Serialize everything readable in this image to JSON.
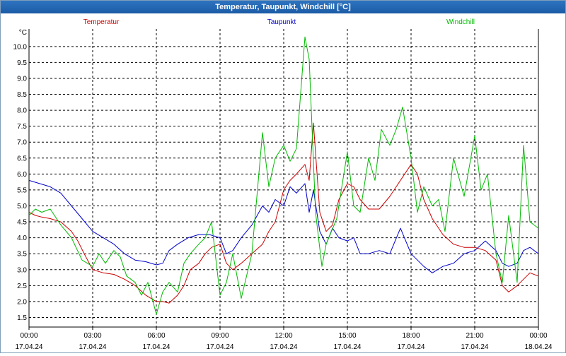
{
  "window": {
    "title": "Temperatur, Taupunkt, Windchill [°C]"
  },
  "colors": {
    "temperature": "#cc0000",
    "dewpoint": "#0000cc",
    "windchill": "#00bb00",
    "grid": "#000000"
  },
  "chart_data": {
    "type": "line",
    "title": "Temperatur, Taupunkt, Windchill [°C]",
    "ylabel": "°C",
    "xlabel": "",
    "ylim": [
      1.2,
      10.55
    ],
    "xlim": [
      0,
      24
    ],
    "grid": true,
    "legend_placement": "top",
    "y_ticks": [
      "1.5",
      "2.0",
      "2.5",
      "3.0",
      "3.5",
      "4.0",
      "4.5",
      "5.0",
      "5.5",
      "6.0",
      "6.5",
      "7.0",
      "7.5",
      "8.0",
      "8.5",
      "9.0",
      "9.5",
      "10.0"
    ],
    "x_ticks": [
      {
        "time": "00:00",
        "date": "17.04.24"
      },
      {
        "time": "03:00",
        "date": "17.04.24"
      },
      {
        "time": "06:00",
        "date": "17.04.24"
      },
      {
        "time": "09:00",
        "date": "17.04.24"
      },
      {
        "time": "12:00",
        "date": "17.04.24"
      },
      {
        "time": "15:00",
        "date": "17.04.24"
      },
      {
        "time": "18:00",
        "date": "17.04.24"
      },
      {
        "time": "21:00",
        "date": "17.04.24"
      },
      {
        "time": "00:00",
        "date": "18.04.24"
      }
    ],
    "x_unit": "hours since 17.04.24 00:00",
    "series": [
      {
        "name": "Temperatur",
        "key": "temperature",
        "x": [
          0,
          0.3,
          0.6,
          1,
          1.5,
          2,
          2.3,
          2.6,
          3,
          3.5,
          4,
          4.5,
          5,
          5.5,
          6,
          6.3,
          6.6,
          7,
          7.3,
          7.6,
          8,
          8.3,
          8.6,
          9,
          9.3,
          9.6,
          10,
          10.5,
          11,
          11.3,
          11.6,
          12,
          12.3,
          12.6,
          13,
          13.2,
          13.4,
          13.7,
          14,
          14.3,
          14.6,
          15,
          15.3,
          15.6,
          16,
          16.5,
          17,
          17.5,
          18,
          18.3,
          18.6,
          19,
          19.5,
          20,
          20.5,
          21,
          21.5,
          22,
          22.3,
          22.6,
          23,
          23.3,
          23.6,
          24
        ],
        "y": [
          4.8,
          4.7,
          4.65,
          4.6,
          4.5,
          4.2,
          3.9,
          3.5,
          3.0,
          2.9,
          2.85,
          2.7,
          2.5,
          2.2,
          2.0,
          2.0,
          1.95,
          2.2,
          2.5,
          3.0,
          3.2,
          3.5,
          3.7,
          3.8,
          3.2,
          3.0,
          3.2,
          3.5,
          3.8,
          4.2,
          4.5,
          5.5,
          5.8,
          6.0,
          6.3,
          5.8,
          7.6,
          4.8,
          4.2,
          4.4,
          5.2,
          5.7,
          5.6,
          5.2,
          4.9,
          4.9,
          5.3,
          5.8,
          6.3,
          6.0,
          5.2,
          4.6,
          4.1,
          3.8,
          3.7,
          3.7,
          3.6,
          3.3,
          2.5,
          2.3,
          2.5,
          2.7,
          2.9,
          2.8
        ]
      },
      {
        "name": "Taupunkt",
        "key": "dewpoint",
        "x": [
          0,
          0.5,
          1,
          1.5,
          2,
          2.5,
          3,
          3.5,
          4,
          4.5,
          5,
          5.5,
          6,
          6.3,
          6.6,
          7,
          7.5,
          8,
          8.5,
          9,
          9.3,
          9.6,
          10,
          10.5,
          11,
          11.3,
          11.6,
          12,
          12.3,
          12.6,
          13,
          13.2,
          13.4,
          13.7,
          14,
          14.3,
          14.6,
          15,
          15.3,
          15.6,
          16,
          16.5,
          17,
          17.5,
          18,
          18.3,
          18.6,
          19,
          19.5,
          20,
          20.5,
          21,
          21.5,
          22,
          22.3,
          22.6,
          23,
          23.3,
          23.6,
          24
        ],
        "y": [
          5.8,
          5.7,
          5.6,
          5.4,
          5.0,
          4.6,
          4.2,
          4.0,
          3.8,
          3.5,
          3.3,
          3.25,
          3.15,
          3.2,
          3.6,
          3.8,
          4.0,
          4.1,
          4.1,
          4.0,
          3.5,
          3.6,
          4.0,
          4.4,
          5.0,
          4.8,
          5.2,
          5.0,
          5.6,
          5.4,
          5.7,
          4.8,
          5.5,
          4.2,
          3.8,
          4.3,
          4.0,
          3.9,
          4.0,
          3.5,
          3.5,
          3.6,
          3.5,
          4.3,
          3.5,
          3.3,
          3.1,
          2.9,
          3.1,
          3.2,
          3.5,
          3.6,
          3.9,
          3.6,
          3.2,
          3.1,
          3.2,
          3.6,
          3.7,
          3.5
        ]
      },
      {
        "name": "Windchill",
        "key": "windchill",
        "x": [
          0,
          0.3,
          0.6,
          1,
          1.5,
          2,
          2.5,
          3,
          3.3,
          3.6,
          4,
          4.3,
          4.6,
          5,
          5.3,
          5.6,
          6,
          6.3,
          6.6,
          7,
          7.3,
          7.6,
          8,
          8.3,
          8.6,
          9,
          9.3,
          9.6,
          10,
          10.5,
          11,
          11.3,
          11.6,
          12,
          12.3,
          12.6,
          13,
          13.2,
          13.5,
          13.8,
          14,
          14.5,
          15,
          15.3,
          15.6,
          16,
          16.3,
          16.6,
          17,
          17.3,
          17.6,
          18,
          18.3,
          18.6,
          19,
          19.3,
          19.6,
          20,
          20.5,
          21,
          21.3,
          21.6,
          22,
          22.3,
          22.6,
          23,
          23.3,
          23.6,
          24
        ],
        "y": [
          4.7,
          4.9,
          4.8,
          4.9,
          4.4,
          4.0,
          3.3,
          3.1,
          3.5,
          3.2,
          3.6,
          3.4,
          2.8,
          2.6,
          2.2,
          2.6,
          1.6,
          2.3,
          2.6,
          2.3,
          3.2,
          3.5,
          3.8,
          4.0,
          4.5,
          2.2,
          2.6,
          3.5,
          2.1,
          3.5,
          7.3,
          5.6,
          6.5,
          6.9,
          6.4,
          6.8,
          10.3,
          9.6,
          4.8,
          3.1,
          3.8,
          4.6,
          6.7,
          5.0,
          4.8,
          6.5,
          5.8,
          7.4,
          6.9,
          7.4,
          8.1,
          6.5,
          4.8,
          5.6,
          5.0,
          5.2,
          4.2,
          6.5,
          5.3,
          7.2,
          5.5,
          6.0,
          3.5,
          2.6,
          4.7,
          2.6,
          6.9,
          4.5,
          4.3
        ]
      }
    ]
  }
}
